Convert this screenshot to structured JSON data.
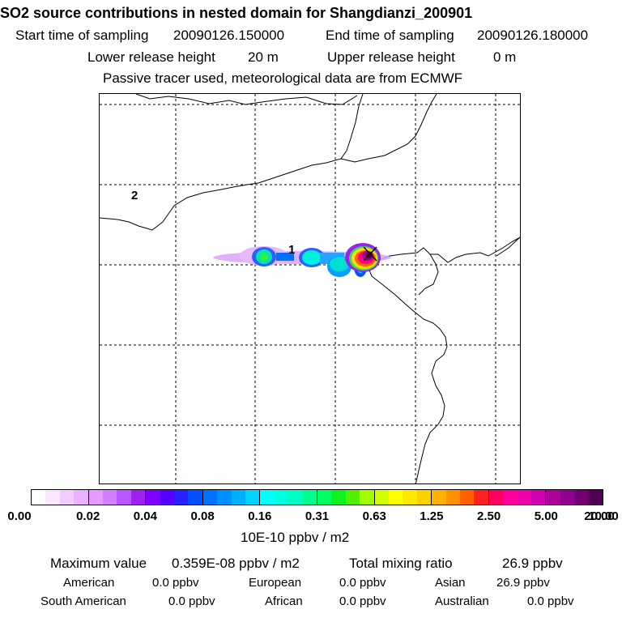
{
  "header": {
    "title": "SO2 source contributions in nested domain for Shangdianzi_200901",
    "start_label": "Start time of sampling",
    "start_value": "20090126.150000",
    "end_label": "End time of sampling",
    "end_value": "20090126.180000",
    "lower_label": "Lower release height",
    "lower_value": "20 m",
    "upper_label": "Upper release height",
    "upper_value": "0 m",
    "note": "Passive tracer used, meteorological data are from ECMWF"
  },
  "map": {
    "labels": [
      "1",
      "2"
    ],
    "station_marker": "x-marker-icon"
  },
  "colorbar": {
    "ticks": [
      "0.00",
      "0.02",
      "0.04",
      "0.08",
      "0.16",
      "0.31",
      "0.63",
      "1.25",
      "2.50",
      "5.00",
      "10.00",
      "20.00"
    ],
    "unit": "10E-10 ppbv / m2",
    "colors": [
      [
        "#ffffff",
        "#fbe6ff",
        "#f3ccff",
        "#ebb3ff"
      ],
      [
        "#e699ff",
        "#d27fff",
        "#bb55ff",
        "#a020f0"
      ],
      [
        "#7f00ff",
        "#5500ff",
        "#2a20ff",
        "#0050ff"
      ],
      [
        "#0070ff",
        "#0090ff",
        "#00b0ff",
        "#00d4ff"
      ],
      [
        "#00ffff",
        "#00ffe0",
        "#00ffc0",
        "#00ff90"
      ],
      [
        "#00ff60",
        "#10f020",
        "#50f000",
        "#a0ff00"
      ],
      [
        "#d0ff00",
        "#ffff00",
        "#ffe800",
        "#ffd000"
      ],
      [
        "#ffb000",
        "#ff9000",
        "#ff6000",
        "#ff2020"
      ],
      [
        "#ff0060",
        "#ff00a0",
        "#ee00aa",
        "#d000b0"
      ],
      [
        "#b0009a",
        "#900090",
        "#700070",
        "#500050"
      ]
    ]
  },
  "summary": {
    "max_label": "Maximum value",
    "max_value": "0.359E-08 ppbv / m2",
    "total_label": "Total mixing ratio",
    "total_value": "26.9 ppbv",
    "regions": [
      {
        "name": "American",
        "value": "0.0 ppbv"
      },
      {
        "name": "European",
        "value": "0.0 ppbv"
      },
      {
        "name": "Asian",
        "value": "26.9 ppbv"
      },
      {
        "name": "South American",
        "value": "0.0 ppbv"
      },
      {
        "name": "African",
        "value": "0.0 ppbv"
      },
      {
        "name": "Australian",
        "value": "0.0 ppbv"
      }
    ]
  }
}
